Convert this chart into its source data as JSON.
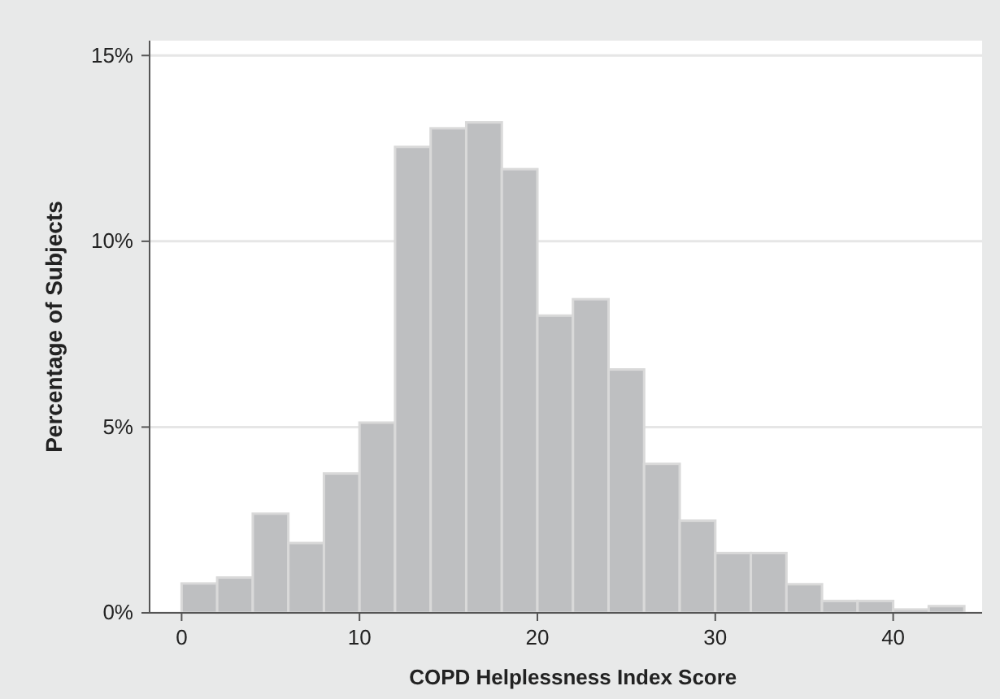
{
  "chart_data": {
    "type": "histogram",
    "xlabel": "COPD Helplessness Index Score",
    "ylabel": "Percentage of Subjects",
    "bins": [
      0,
      2,
      4,
      6,
      8,
      10,
      12,
      14,
      16,
      18,
      20,
      22,
      24,
      26,
      28,
      30,
      32,
      34,
      36,
      38,
      40,
      42,
      44
    ],
    "values": [
      0.79,
      0.95,
      2.67,
      1.88,
      3.75,
      5.12,
      12.54,
      13.04,
      13.2,
      11.94,
      8.0,
      8.44,
      6.55,
      4.01,
      2.48,
      1.61,
      1.61,
      0.77,
      0.32,
      0.32,
      0.09,
      0.18
    ],
    "color": "#bebfc1",
    "xlim": [
      -1.8,
      45
    ],
    "xticks": [
      0,
      10,
      20,
      30,
      40
    ],
    "ylim": [
      0,
      15.4
    ],
    "yticks": [
      {
        "value": 0,
        "label": "0%"
      },
      {
        "value": 5,
        "label": "5%"
      },
      {
        "value": 10,
        "label": "10%"
      },
      {
        "value": 15,
        "label": "15%"
      }
    ],
    "grid": "y"
  }
}
